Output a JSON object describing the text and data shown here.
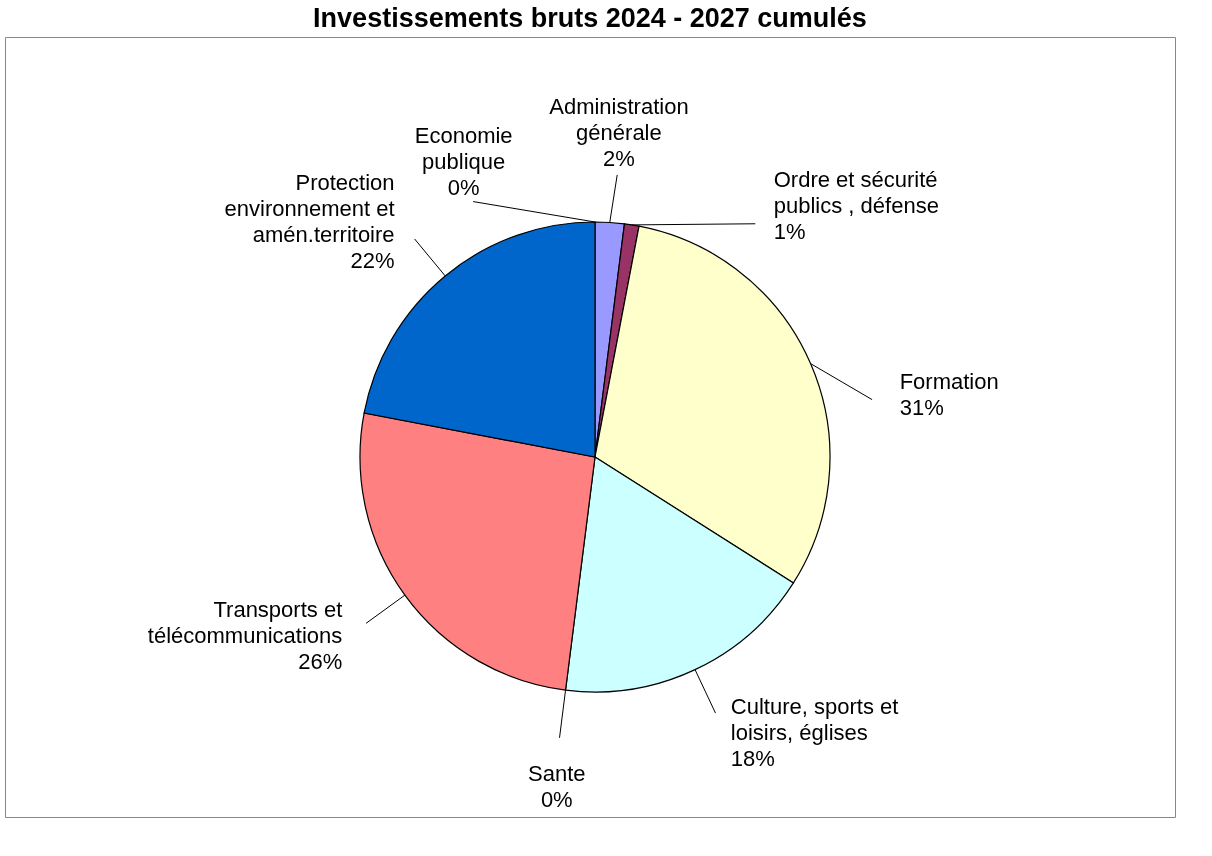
{
  "chart_data": {
    "type": "pie",
    "title": "Investissements bruts 2024 - 2027 cumulés",
    "categories": [
      "Administration générale",
      "Ordre et sécurité publics , défense",
      "Formation",
      "Culture, sports et loisirs, églises",
      "Sante",
      "Transports et télécommunications",
      "Protection environnement et amén.territoire",
      "Economie publique"
    ],
    "values": [
      2,
      1,
      31,
      18,
      0,
      26,
      22,
      0
    ],
    "value_labels": [
      "2%",
      "1%",
      "31%",
      "18%",
      "0%",
      "26%",
      "22%",
      "0%"
    ],
    "colors": [
      "#9999ff",
      "#993366",
      "#ffffcc",
      "#ccffff",
      "#660066",
      "#ff8080",
      "#0066cc",
      "#800000"
    ]
  }
}
